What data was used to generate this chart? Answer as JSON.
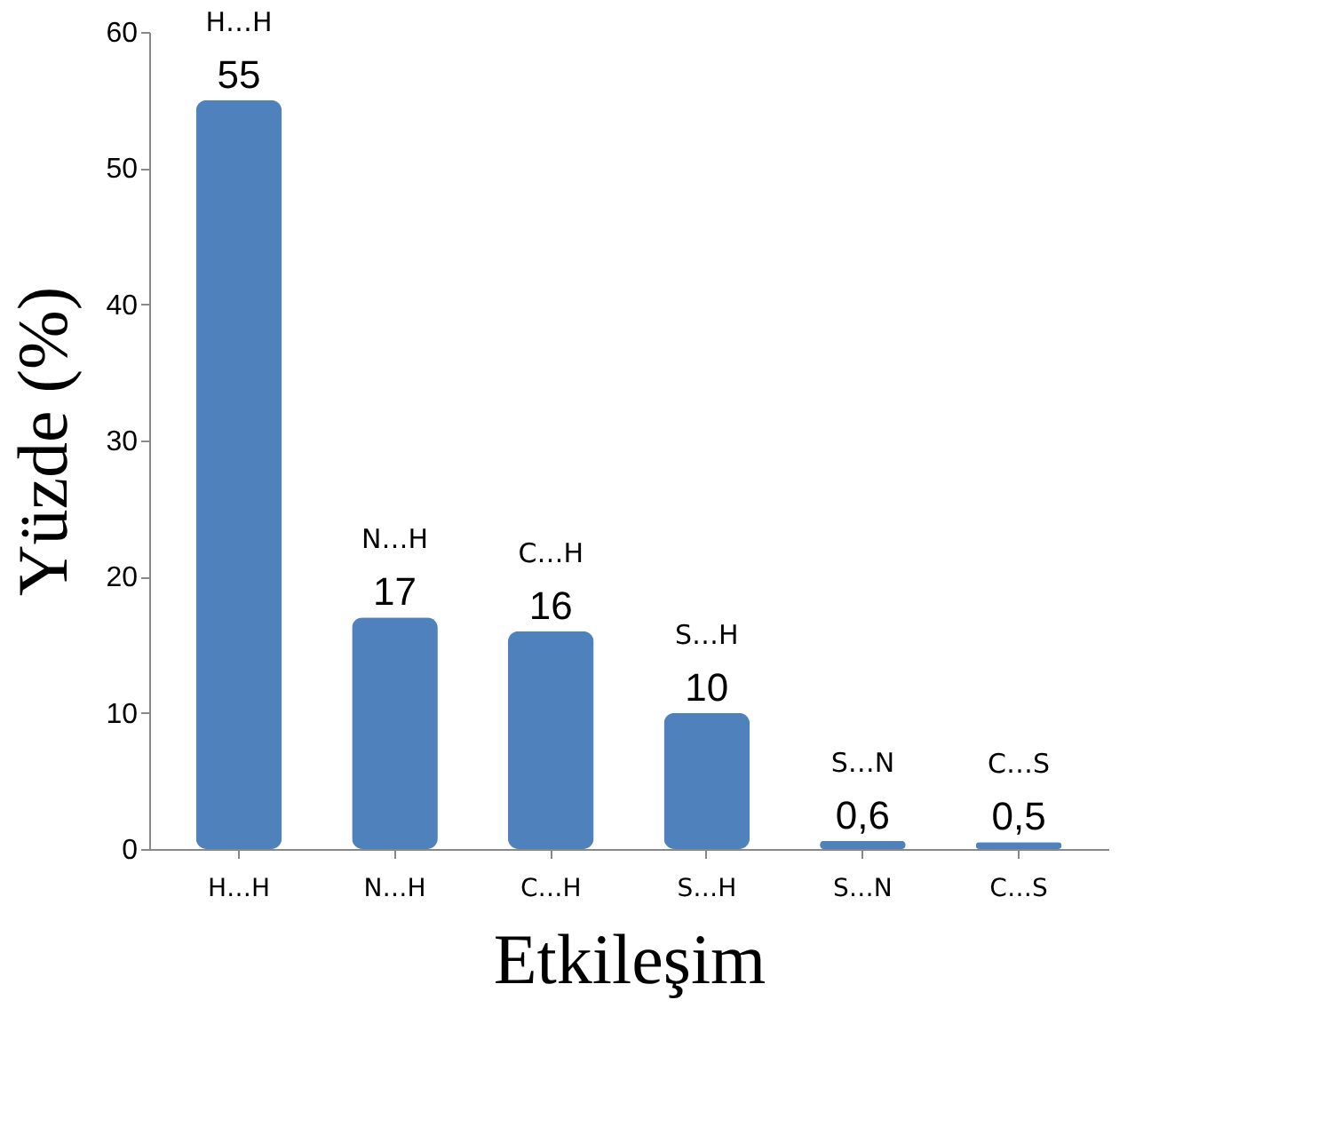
{
  "chart_data": {
    "type": "bar",
    "xlabel": "Etkileşim",
    "ylabel": "Yüzde (%)",
    "categories": [
      "H…H",
      "N…H",
      "C…H",
      "S…H",
      "S…N",
      "C…S"
    ],
    "values": [
      55,
      17,
      16,
      10,
      0.6,
      0.5
    ],
    "value_labels": [
      "55",
      "17",
      "16",
      "10",
      "0,6",
      "0,5"
    ],
    "color": "#4f81bd",
    "ylim": [
      0,
      60
    ],
    "yticks": [
      0,
      10,
      20,
      30,
      40,
      50,
      60
    ],
    "grid": false,
    "annotations": [
      {
        "text": "H…H",
        "x": "H…H",
        "y": 55
      },
      {
        "text": "N…H",
        "x": "N…H",
        "y": 17
      },
      {
        "text": "C…H",
        "x": "C…H",
        "y": 16
      },
      {
        "text": "S…H",
        "x": "S…H",
        "y": 10
      },
      {
        "text": "S…N",
        "x": "S…N",
        "y": 0.6
      },
      {
        "text": "C…S",
        "x": "C…S",
        "y": 0.5
      }
    ]
  }
}
